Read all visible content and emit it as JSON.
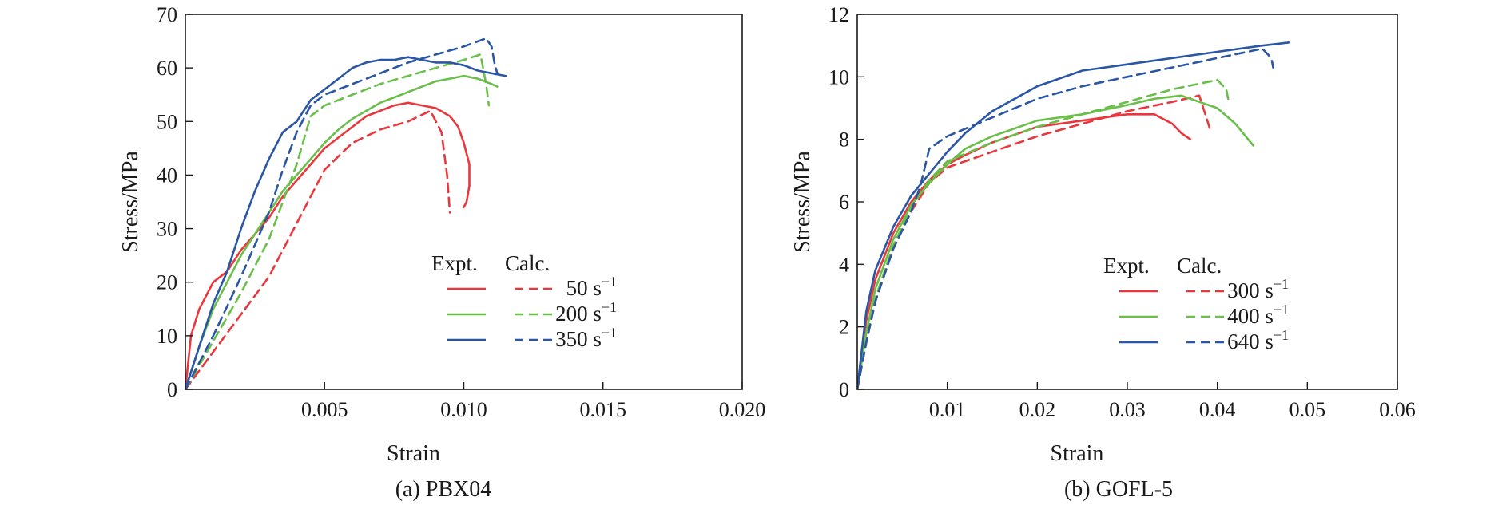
{
  "chart_data": [
    {
      "type": "line",
      "caption": "(a) PBX04",
      "xlabel": "Strain",
      "ylabel": "Stress/MPa",
      "xlim": [
        0,
        0.02
      ],
      "ylim": [
        0,
        70
      ],
      "xticks": [
        0.005,
        0.01,
        0.015,
        0.02
      ],
      "xtick_labels": [
        "0.005",
        "0.010",
        "0.015",
        "0.020"
      ],
      "yticks": [
        0,
        10,
        20,
        30,
        40,
        50,
        60,
        70
      ],
      "ytick_labels": [
        "0",
        "10",
        "20",
        "30",
        "40",
        "50",
        "60",
        "70"
      ],
      "grid": false,
      "legend": {
        "position": "lower-right",
        "col_headers": [
          "Expt.",
          "Calc."
        ],
        "entries": [
          {
            "label": "50 s",
            "superscript": "−1",
            "color": "#e8383d"
          },
          {
            "label": "200 s",
            "superscript": "−1",
            "color": "#6abf4b"
          },
          {
            "label": "350 s",
            "superscript": "−1",
            "color": "#2a56a4"
          }
        ]
      },
      "series": [
        {
          "name": "50 s−1 Expt.",
          "color": "#e8383d",
          "dashed": false,
          "x": [
            0,
            0.0002,
            0.0005,
            0.001,
            0.0015,
            0.002,
            0.0025,
            0.003,
            0.0035,
            0.004,
            0.0045,
            0.005,
            0.0055,
            0.006,
            0.0065,
            0.007,
            0.0075,
            0.008,
            0.0085,
            0.009,
            0.0095,
            0.0098,
            0.01,
            0.0102,
            0.0102,
            0.0101,
            0.01
          ],
          "y": [
            0,
            10,
            15,
            20,
            22,
            26,
            29,
            32,
            36,
            39,
            42,
            45,
            47,
            49,
            51,
            52,
            53,
            53.5,
            53,
            52.5,
            51,
            49,
            46,
            42,
            38,
            35,
            34
          ]
        },
        {
          "name": "50 s−1 Calc.",
          "color": "#e8383d",
          "dashed": true,
          "x": [
            0,
            0.001,
            0.002,
            0.003,
            0.004,
            0.005,
            0.006,
            0.007,
            0.008,
            0.0088,
            0.0092,
            0.0094,
            0.0095
          ],
          "y": [
            0,
            7,
            14,
            21,
            31,
            41,
            46,
            48.5,
            50,
            52,
            48,
            40,
            33
          ]
        },
        {
          "name": "200 s−1 Expt.",
          "color": "#6abf4b",
          "dashed": false,
          "x": [
            0,
            0.0005,
            0.001,
            0.0015,
            0.002,
            0.0025,
            0.003,
            0.0035,
            0.004,
            0.0045,
            0.005,
            0.0055,
            0.006,
            0.0065,
            0.007,
            0.0075,
            0.008,
            0.0085,
            0.009,
            0.0095,
            0.01,
            0.0105,
            0.011,
            0.0112
          ],
          "y": [
            0,
            8,
            15,
            20,
            25,
            29,
            33,
            37,
            40,
            43,
            46,
            48.5,
            50.5,
            52,
            53.5,
            54.5,
            55.5,
            56.5,
            57.5,
            58,
            58.5,
            58,
            57,
            56.5
          ]
        },
        {
          "name": "200 s−1 Calc.",
          "color": "#6abf4b",
          "dashed": true,
          "x": [
            0,
            0.001,
            0.002,
            0.003,
            0.0035,
            0.004,
            0.0045,
            0.005,
            0.006,
            0.007,
            0.008,
            0.009,
            0.01,
            0.0106,
            0.0108,
            0.0109
          ],
          "y": [
            0,
            9,
            18,
            28,
            35,
            42,
            51,
            53,
            55,
            57,
            58.5,
            60,
            61.5,
            62.5,
            57,
            53
          ]
        },
        {
          "name": "350 s−1 Expt.",
          "color": "#2a56a4",
          "dashed": false,
          "x": [
            0,
            0.0005,
            0.001,
            0.0015,
            0.002,
            0.0025,
            0.003,
            0.0035,
            0.004,
            0.0045,
            0.005,
            0.0055,
            0.006,
            0.0065,
            0.007,
            0.0075,
            0.008,
            0.0085,
            0.009,
            0.0095,
            0.01,
            0.0105,
            0.011,
            0.0115
          ],
          "y": [
            0,
            8,
            16,
            22,
            30,
            37,
            43,
            48,
            50,
            54,
            56,
            58,
            60,
            61,
            61.5,
            61.5,
            62,
            61.5,
            61,
            61,
            60.5,
            59.5,
            59,
            58.5
          ]
        },
        {
          "name": "350 s−1 Calc.",
          "color": "#2a56a4",
          "dashed": true,
          "x": [
            0,
            0.001,
            0.002,
            0.003,
            0.0035,
            0.004,
            0.0045,
            0.005,
            0.006,
            0.007,
            0.008,
            0.009,
            0.01,
            0.0108,
            0.011,
            0.0111,
            0.0112
          ],
          "y": [
            0,
            10,
            21,
            33,
            41,
            48,
            53,
            55,
            57,
            59,
            61,
            62.5,
            64,
            65.5,
            64,
            61,
            59
          ]
        }
      ]
    },
    {
      "type": "line",
      "caption": "(b) GOFL-5",
      "xlabel": "Strain",
      "ylabel": "Stress/MPa",
      "xlim": [
        0,
        0.06
      ],
      "ylim": [
        0,
        12
      ],
      "xticks": [
        0.01,
        0.02,
        0.03,
        0.04,
        0.05,
        0.06
      ],
      "xtick_labels": [
        "0.01",
        "0.02",
        "0.03",
        "0.04",
        "0.05",
        "0.06"
      ],
      "yticks": [
        0,
        2,
        4,
        6,
        8,
        10,
        12
      ],
      "ytick_labels": [
        "0",
        "2",
        "4",
        "6",
        "8",
        "10",
        "12"
      ],
      "grid": false,
      "legend": {
        "position": "lower-right",
        "col_headers": [
          "Expt.",
          "Calc."
        ],
        "entries": [
          {
            "label": "300 s",
            "superscript": "−1",
            "color": "#e8383d"
          },
          {
            "label": "400 s",
            "superscript": "−1",
            "color": "#6abf4b"
          },
          {
            "label": "640 s",
            "superscript": "−1",
            "color": "#2a56a4"
          }
        ]
      },
      "series": [
        {
          "name": "300 s−1 Expt.",
          "color": "#e8383d",
          "dashed": false,
          "x": [
            0,
            0.001,
            0.002,
            0.004,
            0.006,
            0.008,
            0.01,
            0.012,
            0.015,
            0.02,
            0.025,
            0.03,
            0.033,
            0.035,
            0.036,
            0.037
          ],
          "y": [
            0,
            2.2,
            3.5,
            5,
            6,
            6.7,
            7.2,
            7.5,
            7.9,
            8.4,
            8.6,
            8.8,
            8.8,
            8.5,
            8.2,
            8.0
          ]
        },
        {
          "name": "300 s−1 Calc.",
          "color": "#e8383d",
          "dashed": true,
          "x": [
            0,
            0.001,
            0.002,
            0.004,
            0.006,
            0.008,
            0.01,
            0.015,
            0.02,
            0.025,
            0.03,
            0.035,
            0.038,
            0.039,
            0.0392
          ],
          "y": [
            0,
            1.5,
            2.8,
            4.5,
            5.7,
            6.6,
            7.1,
            7.6,
            8.1,
            8.5,
            8.9,
            9.2,
            9.4,
            8.5,
            8.3
          ]
        },
        {
          "name": "400 s−1 Expt.",
          "color": "#6abf4b",
          "dashed": false,
          "x": [
            0,
            0.001,
            0.002,
            0.004,
            0.006,
            0.008,
            0.01,
            0.012,
            0.015,
            0.02,
            0.025,
            0.03,
            0.033,
            0.036,
            0.038,
            0.04,
            0.042,
            0.044
          ],
          "y": [
            0,
            1.8,
            3.2,
            4.8,
            5.9,
            6.6,
            7.2,
            7.7,
            8.1,
            8.6,
            8.8,
            9.1,
            9.3,
            9.4,
            9.2,
            9.0,
            8.5,
            7.8
          ]
        },
        {
          "name": "400 s−1 Calc.",
          "color": "#6abf4b",
          "dashed": true,
          "x": [
            0,
            0.001,
            0.002,
            0.004,
            0.006,
            0.008,
            0.01,
            0.015,
            0.02,
            0.025,
            0.03,
            0.035,
            0.04,
            0.041,
            0.0412
          ],
          "y": [
            0,
            1.6,
            2.9,
            4.6,
            5.8,
            6.7,
            7.3,
            7.9,
            8.4,
            8.8,
            9.2,
            9.6,
            9.9,
            9.6,
            9.3
          ]
        },
        {
          "name": "640 s−1 Expt.",
          "color": "#2a56a4",
          "dashed": false,
          "x": [
            0,
            0.001,
            0.002,
            0.004,
            0.006,
            0.008,
            0.01,
            0.012,
            0.015,
            0.02,
            0.025,
            0.03,
            0.035,
            0.04,
            0.045,
            0.048
          ],
          "y": [
            0,
            2.5,
            3.8,
            5.2,
            6.2,
            6.9,
            7.6,
            8.2,
            8.9,
            9.7,
            10.2,
            10.4,
            10.6,
            10.8,
            11.0,
            11.1
          ]
        },
        {
          "name": "640 s−1 Calc.",
          "color": "#2a56a4",
          "dashed": true,
          "x": [
            0,
            0.001,
            0.002,
            0.004,
            0.006,
            0.007,
            0.008,
            0.009,
            0.01,
            0.015,
            0.02,
            0.025,
            0.03,
            0.035,
            0.04,
            0.045,
            0.046,
            0.0462
          ],
          "y": [
            0,
            1.5,
            2.8,
            4.5,
            5.7,
            6.5,
            7.7,
            7.9,
            8.1,
            8.7,
            9.3,
            9.7,
            10.0,
            10.3,
            10.6,
            10.9,
            10.6,
            10.3
          ]
        }
      ]
    }
  ]
}
